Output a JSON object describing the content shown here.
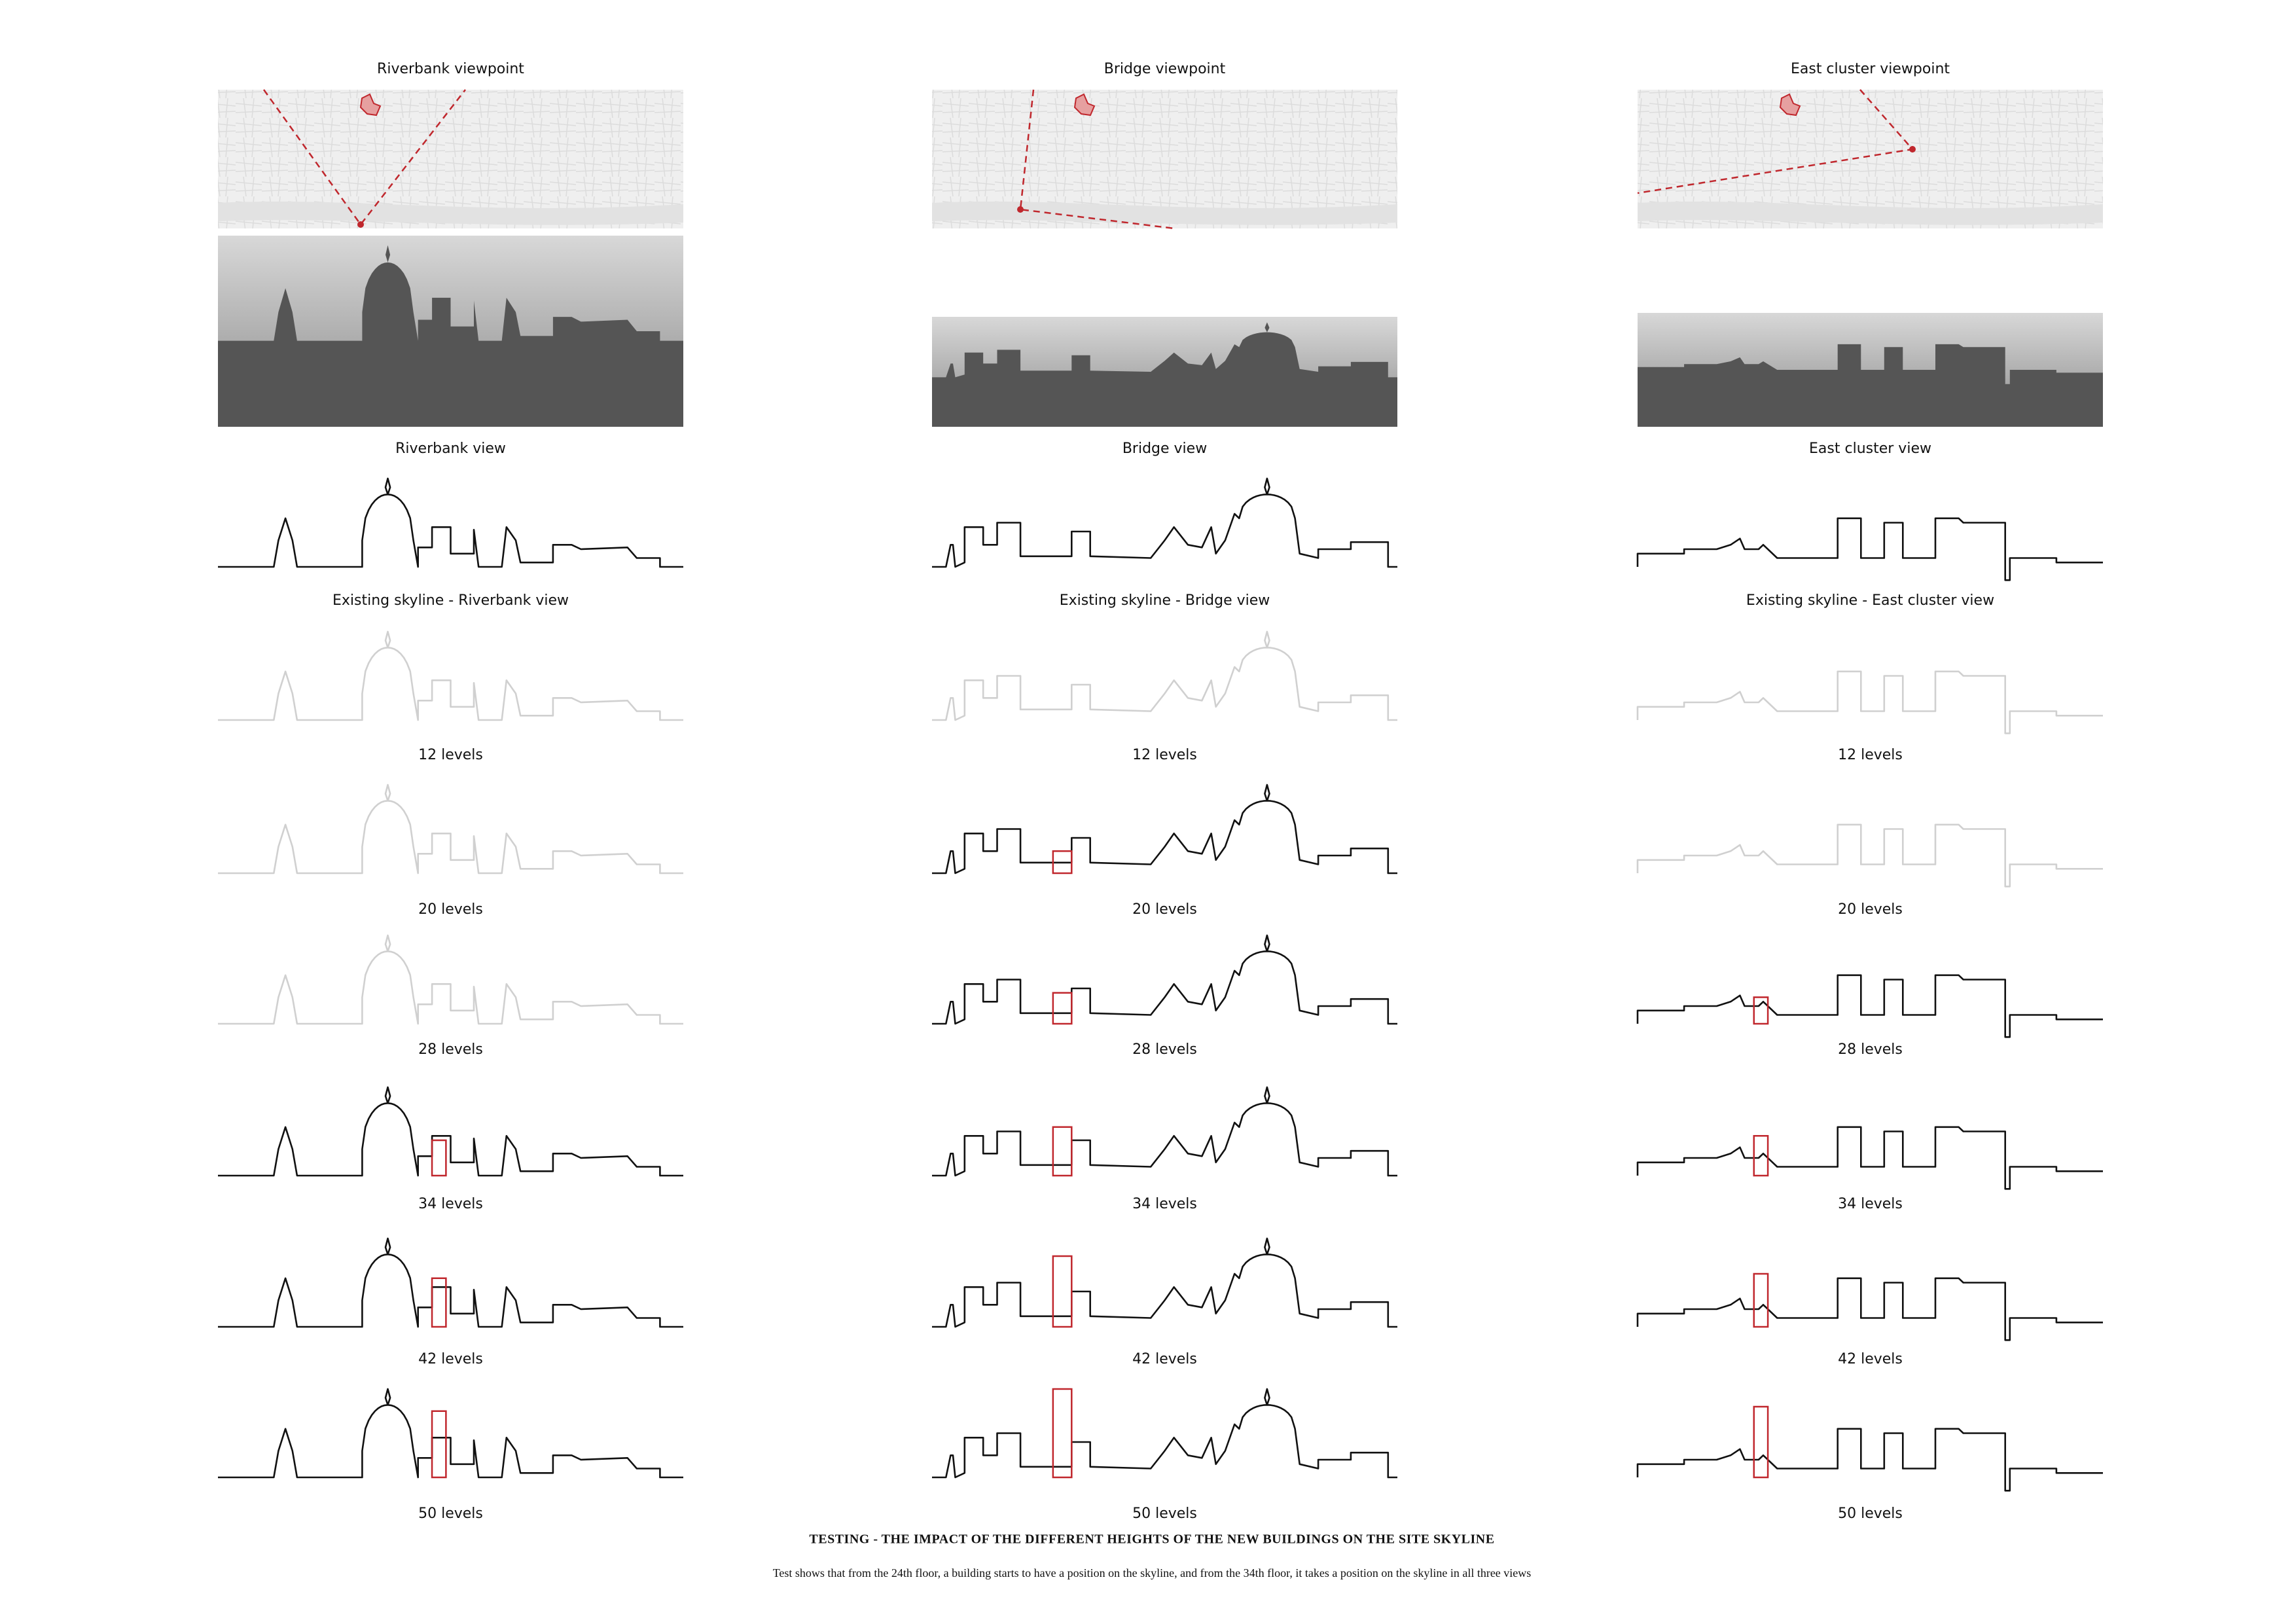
{
  "columns": [
    {
      "viewpoint": "Riverbank viewpoint",
      "view": "Riverbank view",
      "existing": "Existing skyline - Riverbank view",
      "tests": [
        "12 levels",
        "20 levels",
        "28 levels",
        "34 levels",
        "42 levels",
        "50 levels"
      ]
    },
    {
      "viewpoint": "Bridge viewpoint",
      "view": "Bridge view",
      "existing": "Existing skyline - Bridge view",
      "tests": [
        "12 levels",
        "20 levels",
        "28 levels",
        "34 levels",
        "42 levels",
        "50 levels"
      ]
    },
    {
      "viewpoint": "East cluster viewpoint",
      "view": "East cluster view",
      "existing": "Existing skyline - East cluster view",
      "tests": [
        "12 levels",
        "20 levels",
        "28 levels",
        "34 levels",
        "42 levels",
        "50 levels"
      ]
    }
  ],
  "footer": {
    "title": "TESTING - THE IMPACT OF THE DIFFERENT HEIGHTS OF THE NEW BUILDINGS ON THE SITE SKYLINE",
    "caption": "Test shows that from the 24th floor, a building starts to have a position on the skyline, and from the 34th floor, it takes a position on the skyline in all three views"
  }
}
